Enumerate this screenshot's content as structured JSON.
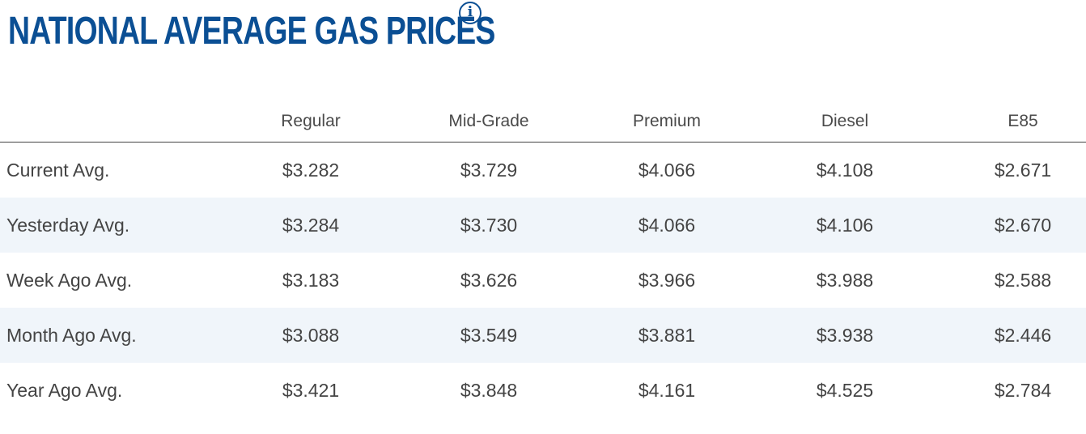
{
  "header": {
    "title": "NATIONAL AVERAGE GAS PRICES",
    "info_icon": "info-icon"
  },
  "table": {
    "columns": [
      "",
      "Regular",
      "Mid-Grade",
      "Premium",
      "Diesel",
      "E85"
    ],
    "rows": [
      {
        "label": "Current Avg.",
        "values": [
          "$3.282",
          "$3.729",
          "$4.066",
          "$4.108",
          "$2.671"
        ]
      },
      {
        "label": "Yesterday Avg.",
        "values": [
          "$3.284",
          "$3.730",
          "$4.066",
          "$4.106",
          "$2.670"
        ]
      },
      {
        "label": "Week Ago Avg.",
        "values": [
          "$3.183",
          "$3.626",
          "$3.966",
          "$3.988",
          "$2.588"
        ]
      },
      {
        "label": "Month Ago Avg.",
        "values": [
          "$3.088",
          "$3.549",
          "$3.881",
          "$3.938",
          "$2.446"
        ]
      },
      {
        "label": "Year Ago Avg.",
        "values": [
          "$3.421",
          "$3.848",
          "$4.161",
          "$4.525",
          "$2.784"
        ]
      }
    ]
  },
  "colors": {
    "title": "#0b4f94",
    "stripe": "#f0f5fa",
    "text": "#444444"
  }
}
